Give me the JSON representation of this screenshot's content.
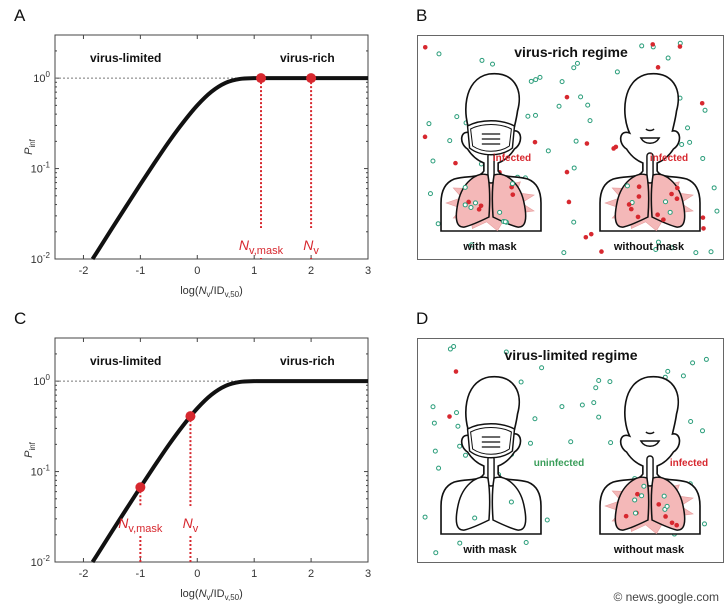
{
  "panels": {
    "a_letter": "A",
    "b_letter": "B",
    "c_letter": "C",
    "d_letter": "D"
  },
  "chart_data": [
    {
      "panel": "A",
      "type": "line",
      "xlim": [
        -2.5,
        3
      ],
      "ylim": [
        0.01,
        3
      ],
      "yscale": "log",
      "grid": false,
      "xticks": [
        -2,
        -1,
        0,
        1,
        2,
        3
      ],
      "xtick_labels": [
        "-2",
        "-1",
        "0",
        "1",
        "2",
        "3"
      ],
      "yticks": [
        {
          "value": 1,
          "base": "10",
          "exp": "0"
        },
        {
          "value": 0.1,
          "base": "10",
          "exp": "-1"
        },
        {
          "value": 0.01,
          "base": "10",
          "exp": "-2"
        }
      ],
      "xlabel": {
        "prefix": "log(",
        "var": "N",
        "var_sub": "v",
        "mid": "/ID",
        "mid_sub": "v,50",
        "suffix": ")"
      },
      "ylabel": {
        "var": "P",
        "sub": "inf"
      },
      "reference_line_y": 1,
      "regime_labels": {
        "left": "virus-limited",
        "right": "virus-rich"
      },
      "series": [
        {
          "color": "#111111",
          "x": [
            -1.84,
            -1.75,
            -1.5,
            -1.25,
            -1.0,
            -0.75,
            -0.5,
            -0.25,
            0,
            0.25,
            0.5,
            0.75,
            1.0,
            1.25,
            3.0
          ],
          "y": [
            0.01,
            0.01225,
            0.0217,
            0.0382,
            0.067,
            0.1159,
            0.1975,
            0.3224,
            0.5,
            0.7085,
            0.8886,
            0.9798,
            0.999,
            1.0,
            1.0
          ]
        }
      ],
      "points": [
        {
          "x": 1.12,
          "y": 1.0,
          "label_main": "N",
          "label_sub": "v,mask"
        },
        {
          "x": 2.0,
          "y": 1.0,
          "label_main": "N",
          "label_sub": "v"
        }
      ],
      "point_color": "#d7282f"
    },
    {
      "panel": "C",
      "type": "line",
      "xlim": [
        -2.5,
        3
      ],
      "ylim": [
        0.01,
        3
      ],
      "yscale": "log",
      "grid": false,
      "xticks": [
        -2,
        -1,
        0,
        1,
        2,
        3
      ],
      "xtick_labels": [
        "-2",
        "-1",
        "0",
        "1",
        "2",
        "3"
      ],
      "yticks": [
        {
          "value": 1,
          "base": "10",
          "exp": "0"
        },
        {
          "value": 0.1,
          "base": "10",
          "exp": "-1"
        },
        {
          "value": 0.01,
          "base": "10",
          "exp": "-2"
        }
      ],
      "xlabel": {
        "prefix": "log(",
        "var": "N",
        "var_sub": "v",
        "mid": "/ID",
        "mid_sub": "v,50",
        "suffix": ")"
      },
      "ylabel": {
        "var": "P",
        "sub": "inf"
      },
      "reference_line_y": 1,
      "regime_labels": {
        "left": "virus-limited",
        "right": "virus-rich"
      },
      "series": [
        {
          "color": "#111111",
          "x": [
            -1.84,
            -1.75,
            -1.5,
            -1.25,
            -1.0,
            -0.75,
            -0.5,
            -0.25,
            0,
            0.25,
            0.5,
            0.75,
            1.0,
            1.25,
            3.0
          ],
          "y": [
            0.01,
            0.01225,
            0.0217,
            0.0382,
            0.067,
            0.1159,
            0.1975,
            0.3224,
            0.5,
            0.7085,
            0.8886,
            0.9798,
            0.999,
            1.0,
            1.0
          ]
        }
      ],
      "points": [
        {
          "x": -1.0,
          "y": 0.067,
          "label_main": "N",
          "label_sub": "v,mask"
        },
        {
          "x": -0.12,
          "y": 0.41,
          "label_main": "N",
          "label_sub": "v"
        }
      ],
      "point_color": "#d7282f"
    }
  ],
  "illustration_b": {
    "title": "virus-rich regime",
    "left_caption": "with mask",
    "right_caption": "without mask",
    "left_status": "infected",
    "right_status": "infected"
  },
  "illustration_d": {
    "title": "virus-limited regime",
    "left_caption": "with mask",
    "right_caption": "without mask",
    "left_status": "uninfected",
    "right_status": "infected"
  },
  "colors": {
    "infected": "#d7282f",
    "uninfected": "#3a9e5a",
    "virus_open": "#2a9d7a",
    "lung_fill": "#f4b8b8"
  },
  "watermark": "© news.google.com"
}
